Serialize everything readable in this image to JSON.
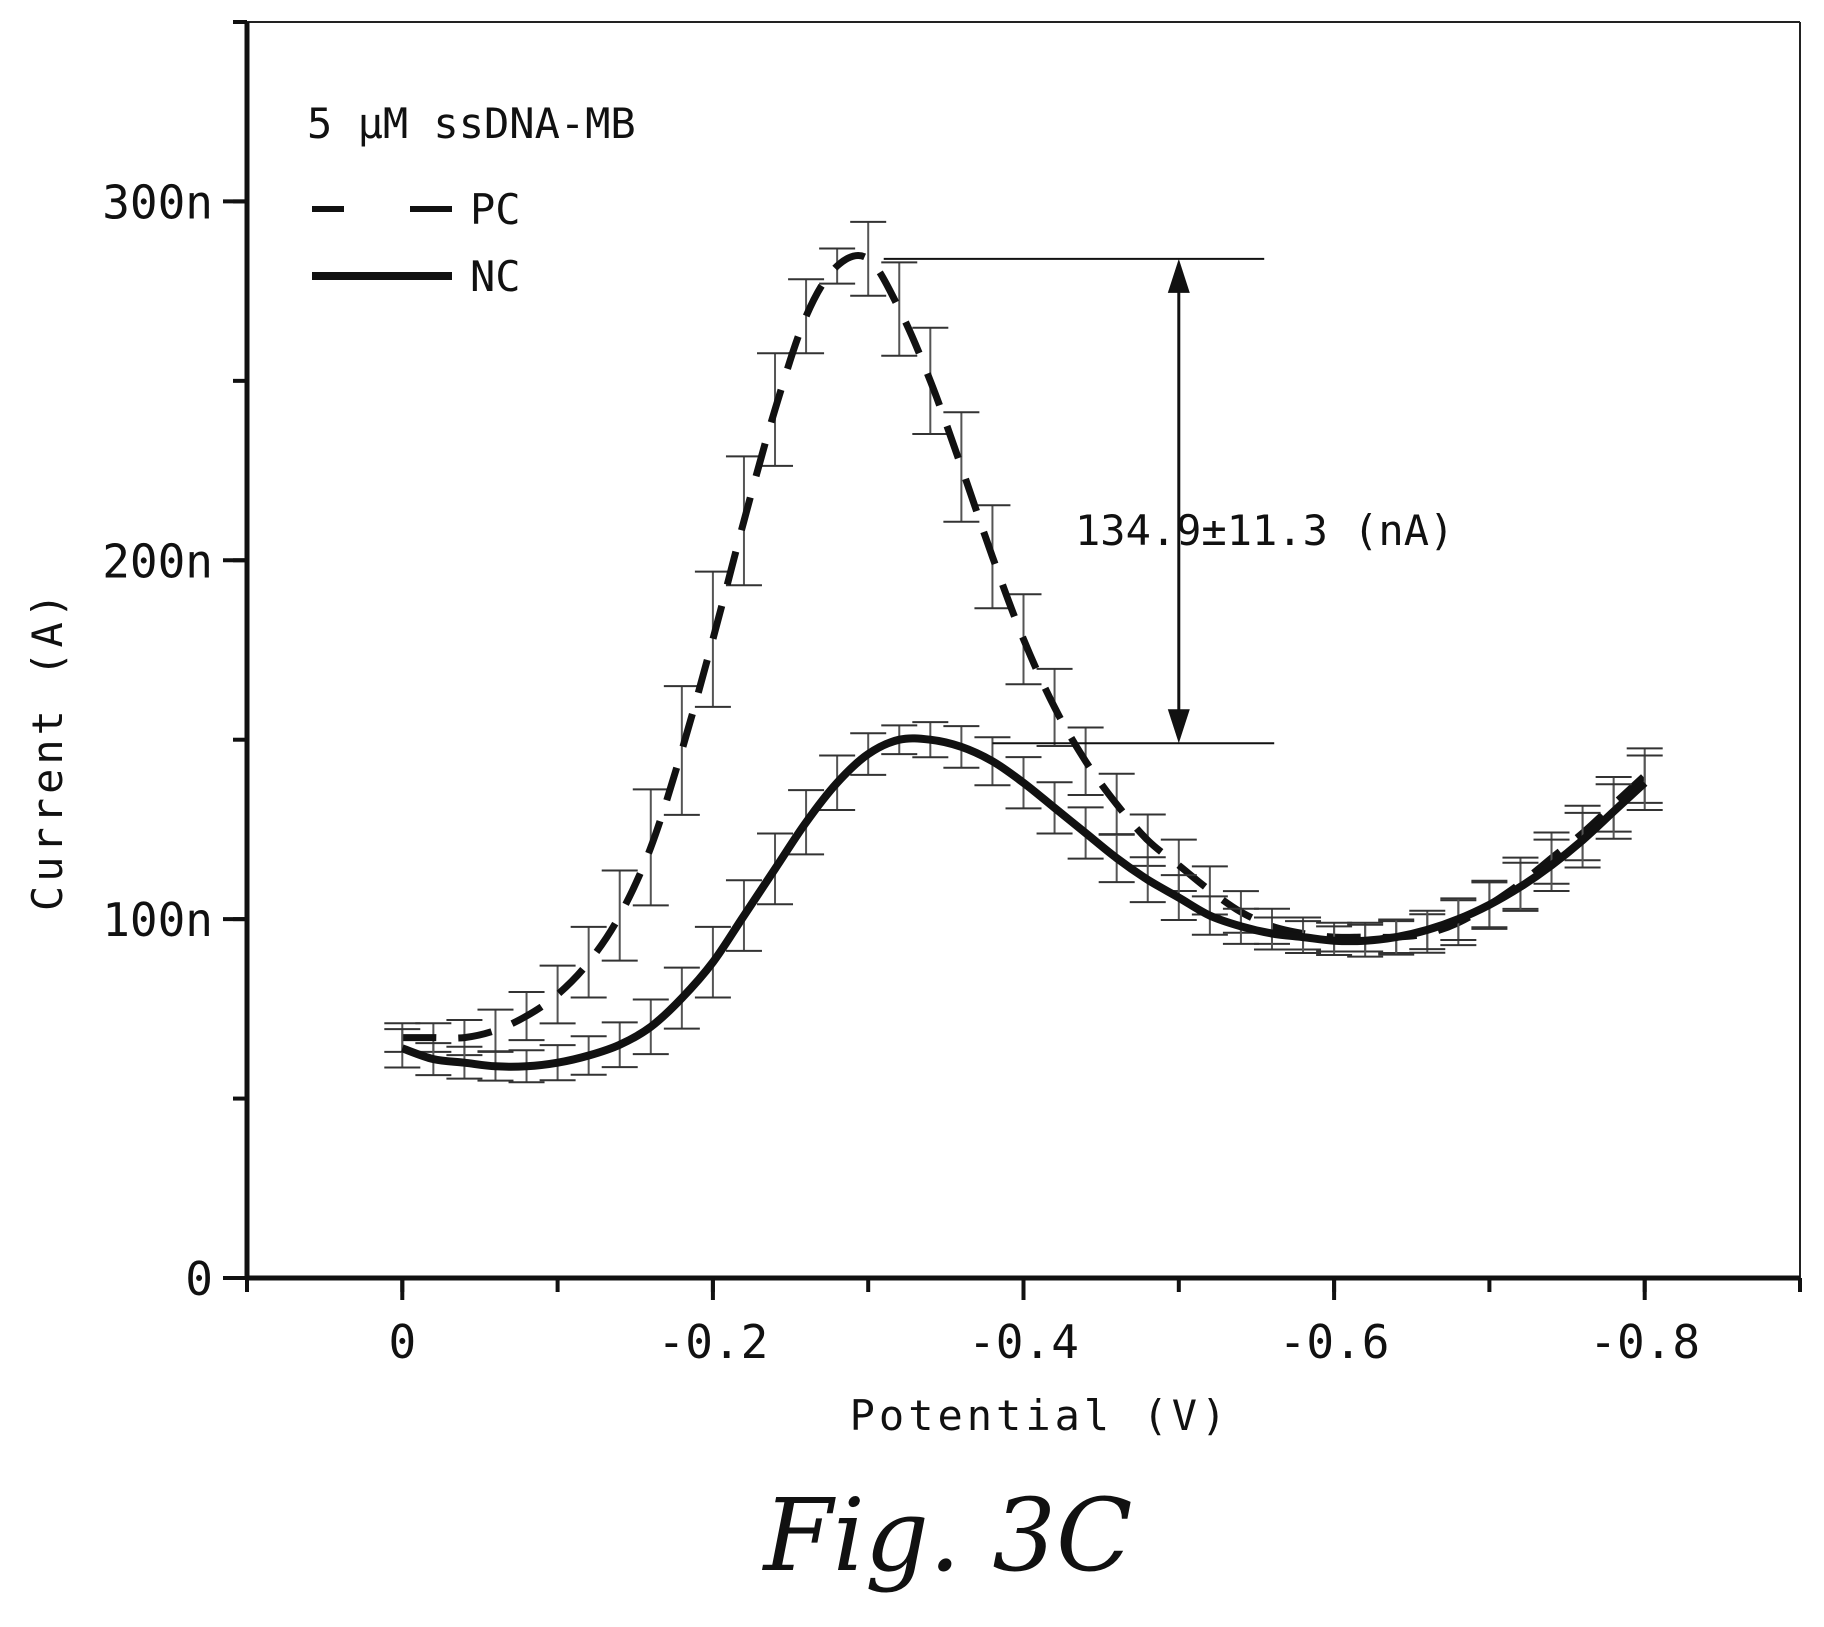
{
  "chart_data": {
    "type": "line",
    "xlabel": "Potential (V)",
    "ylabel": "Current (A)",
    "xlim": [
      0.1,
      -0.9
    ],
    "ylim": [
      0,
      350
    ],
    "x_ticks": [
      {
        "value": 0,
        "label": "0"
      },
      {
        "value": -0.2,
        "label": "-0.2"
      },
      {
        "value": -0.4,
        "label": "-0.4"
      },
      {
        "value": -0.6,
        "label": "-0.6"
      },
      {
        "value": -0.8,
        "label": "-0.8"
      }
    ],
    "y_ticks": [
      {
        "value": 0,
        "label": "0"
      },
      {
        "value": 100,
        "label": "100n"
      },
      {
        "value": 200,
        "label": "200n"
      },
      {
        "value": 300,
        "label": "300n"
      }
    ],
    "legend": {
      "title": "5 μM ssDNA-MB",
      "entries": [
        {
          "label": "PC",
          "style": "dashed"
        },
        {
          "label": "NC",
          "style": "solid"
        }
      ]
    },
    "series": [
      {
        "name": "PC",
        "style": "dashed",
        "x": [
          0,
          -0.02,
          -0.04,
          -0.06,
          -0.08,
          -0.1,
          -0.12,
          -0.14,
          -0.16,
          -0.18,
          -0.2,
          -0.22,
          -0.24,
          -0.26,
          -0.28,
          -0.3,
          -0.32,
          -0.34,
          -0.36,
          -0.38,
          -0.4,
          -0.42,
          -0.44,
          -0.46,
          -0.48,
          -0.5,
          -0.52,
          -0.54,
          -0.56,
          -0.58,
          -0.6,
          -0.62,
          -0.64,
          -0.66,
          -0.68,
          -0.7,
          -0.72,
          -0.74,
          -0.76,
          -0.78,
          -0.8
        ],
        "y": [
          67,
          67,
          67,
          69,
          73,
          79,
          88,
          101,
          120,
          147,
          178,
          211,
          242,
          268,
          282,
          284,
          270,
          250,
          226,
          201,
          178,
          159,
          144,
          132,
          122,
          115,
          108,
          102,
          98,
          96,
          95,
          95,
          95,
          96,
          99,
          104,
          110,
          117,
          124,
          132,
          140
        ]
      },
      {
        "name": "NC",
        "style": "solid",
        "x": [
          0,
          -0.02,
          -0.04,
          -0.06,
          -0.08,
          -0.1,
          -0.12,
          -0.14,
          -0.16,
          -0.18,
          -0.2,
          -0.22,
          -0.24,
          -0.26,
          -0.28,
          -0.3,
          -0.32,
          -0.34,
          -0.36,
          -0.38,
          -0.4,
          -0.42,
          -0.44,
          -0.46,
          -0.48,
          -0.5,
          -0.52,
          -0.54,
          -0.56,
          -0.58,
          -0.6,
          -0.62,
          -0.64,
          -0.66,
          -0.68,
          -0.7,
          -0.72,
          -0.74,
          -0.76,
          -0.78,
          -0.8
        ],
        "y": [
          64,
          61,
          60,
          59,
          59,
          60,
          62,
          65,
          70,
          78,
          88,
          101,
          114,
          127,
          138,
          146,
          150,
          150,
          148,
          144,
          138,
          131,
          124,
          117,
          111,
          106,
          101,
          98,
          96,
          95,
          94,
          94,
          95,
          97,
          100,
          104,
          109,
          115,
          122,
          130,
          138
        ]
      }
    ],
    "annotation": {
      "text": "134.9±11.3 (nA)",
      "top_value": 284,
      "bottom_value": 149,
      "arrow_x": -0.5,
      "line_start_x_top": -0.31,
      "line_start_x_bottom": -0.38,
      "line_end_x": -0.555
    }
  },
  "caption": "Fig. 3C"
}
